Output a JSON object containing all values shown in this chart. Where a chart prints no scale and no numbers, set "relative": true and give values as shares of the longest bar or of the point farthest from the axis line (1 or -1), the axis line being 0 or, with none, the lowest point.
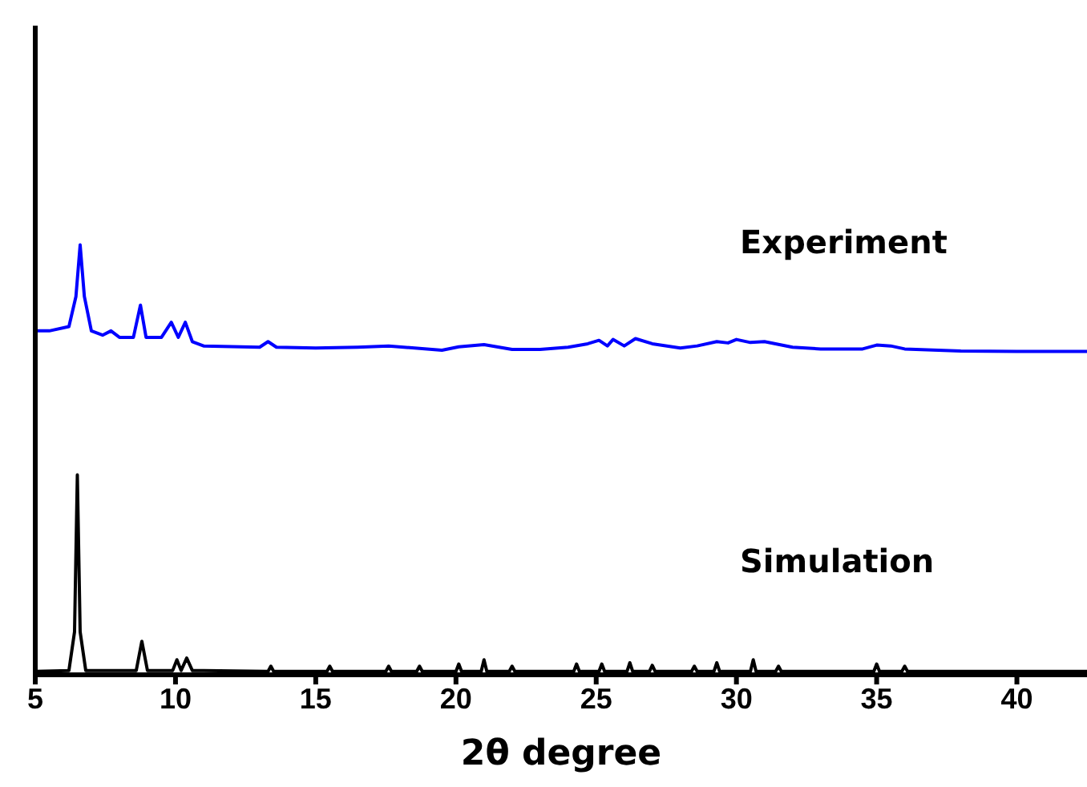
{
  "chart_data": {
    "type": "line",
    "xlabel": "2θ degree",
    "relative": true,
    "xlim": [
      5,
      42.5
    ],
    "xticks": [
      5,
      10,
      15,
      20,
      25,
      30,
      35,
      40
    ],
    "marker": "none",
    "line_style": "solid",
    "series": [
      {
        "name": "Experiment",
        "color": "#0000ff",
        "x": [
          5,
          5.5,
          6.2,
          6.45,
          6.6,
          6.75,
          7.0,
          7.4,
          7.7,
          8.0,
          8.5,
          8.75,
          8.95,
          9.5,
          9.85,
          10.1,
          10.35,
          10.6,
          11,
          13,
          13.3,
          13.6,
          15,
          16.5,
          17.6,
          19.5,
          20.1,
          21,
          22,
          23,
          24,
          24.7,
          25.1,
          25.4,
          25.6,
          26,
          26.4,
          27,
          28,
          28.6,
          29.3,
          29.7,
          30,
          30.5,
          31,
          32,
          33,
          34.5,
          35,
          35.5,
          36,
          38,
          40,
          42.5
        ],
        "values": [
          0.8,
          0.8,
          0.81,
          0.88,
          1.0,
          0.88,
          0.8,
          0.79,
          0.8,
          0.785,
          0.785,
          0.86,
          0.785,
          0.785,
          0.82,
          0.785,
          0.82,
          0.775,
          0.765,
          0.762,
          0.775,
          0.762,
          0.76,
          0.762,
          0.765,
          0.755,
          0.763,
          0.768,
          0.757,
          0.757,
          0.762,
          0.77,
          0.778,
          0.765,
          0.78,
          0.765,
          0.782,
          0.77,
          0.76,
          0.765,
          0.775,
          0.772,
          0.78,
          0.773,
          0.775,
          0.762,
          0.758,
          0.758,
          0.767,
          0.765,
          0.758,
          0.753,
          0.752,
          0.752
        ]
      },
      {
        "name": "Simulation",
        "color": "#000000",
        "x": [
          5,
          6.2,
          6.4,
          6.5,
          6.6,
          6.8,
          8.6,
          8.8,
          9.0,
          9.9,
          10.05,
          10.2,
          10.4,
          10.6,
          13.3,
          13.4,
          13.5,
          15.4,
          15.5,
          15.6,
          17.5,
          17.6,
          17.7,
          18.6,
          18.7,
          18.8,
          20.0,
          20.1,
          20.2,
          20.9,
          21.0,
          21.1,
          21.9,
          22.0,
          22.1,
          24.2,
          24.3,
          24.4,
          25.1,
          25.2,
          25.3,
          26.1,
          26.2,
          26.3,
          26.9,
          27.0,
          27.1,
          28.4,
          28.5,
          28.6,
          29.2,
          29.3,
          29.4,
          30.5,
          30.6,
          30.7,
          31.4,
          31.5,
          31.6,
          34.9,
          35.0,
          35.1,
          35.9,
          36.0,
          36.1,
          42.5
        ],
        "values": [
          0.008,
          0.01,
          0.1,
          0.465,
          0.1,
          0.01,
          0.01,
          0.078,
          0.01,
          0.01,
          0.035,
          0.01,
          0.039,
          0.01,
          0.008,
          0.02,
          0.008,
          0.008,
          0.02,
          0.008,
          0.008,
          0.02,
          0.008,
          0.008,
          0.02,
          0.008,
          0.008,
          0.025,
          0.008,
          0.008,
          0.035,
          0.008,
          0.008,
          0.02,
          0.008,
          0.008,
          0.025,
          0.008,
          0.008,
          0.025,
          0.008,
          0.008,
          0.028,
          0.008,
          0.008,
          0.022,
          0.008,
          0.008,
          0.02,
          0.008,
          0.008,
          0.028,
          0.008,
          0.008,
          0.035,
          0.008,
          0.008,
          0.02,
          0.008,
          0.008,
          0.025,
          0.008,
          0.008,
          0.02,
          0.008,
          0.008
        ]
      }
    ]
  }
}
